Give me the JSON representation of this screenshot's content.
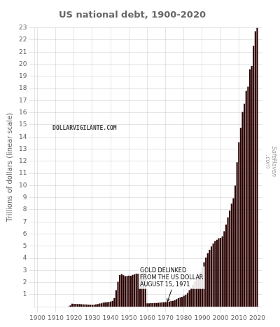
{
  "chart_data": {
    "type": "bar",
    "title": "US national debt, 1900-2020",
    "ylabel": "Trillions of dollars (linear scale)",
    "x": [
      1900,
      1901,
      1902,
      1903,
      1904,
      1905,
      1906,
      1907,
      1908,
      1909,
      1910,
      1911,
      1912,
      1913,
      1914,
      1915,
      1916,
      1917,
      1918,
      1919,
      1920,
      1921,
      1922,
      1923,
      1924,
      1925,
      1926,
      1927,
      1928,
      1929,
      1930,
      1931,
      1932,
      1933,
      1934,
      1935,
      1936,
      1937,
      1938,
      1939,
      1940,
      1941,
      1942,
      1943,
      1944,
      1945,
      1946,
      1947,
      1948,
      1949,
      1950,
      1951,
      1952,
      1953,
      1954,
      1955,
      1956,
      1957,
      1958,
      1959,
      1960,
      1961,
      1962,
      1963,
      1964,
      1965,
      1966,
      1967,
      1968,
      1969,
      1970,
      1971,
      1972,
      1973,
      1974,
      1975,
      1976,
      1977,
      1978,
      1979,
      1980,
      1981,
      1982,
      1983,
      1984,
      1985,
      1986,
      1987,
      1988,
      1989,
      1990,
      1991,
      1992,
      1993,
      1994,
      1995,
      1996,
      1997,
      1998,
      1999,
      2000,
      2001,
      2002,
      2003,
      2004,
      2005,
      2006,
      2007,
      2008,
      2009,
      2010,
      2011,
      2012,
      2013,
      2014,
      2015,
      2016,
      2017,
      2018,
      2019,
      2020
    ],
    "values": [
      0.0013,
      0.0011,
      0.0009,
      0.0009,
      0.0009,
      0.0009,
      0.0009,
      0.0009,
      0.001,
      0.0009,
      0.0011,
      0.0011,
      0.0012,
      0.0012,
      0.0012,
      0.0025,
      0.0034,
      0.0298,
      0.12,
      0.256,
      0.2426,
      0.239,
      0.2298,
      0.2218,
      0.2136,
      0.2062,
      0.1987,
      0.1834,
      0.1723,
      0.1693,
      0.1613,
      0.1688,
      0.1985,
      0.2274,
      0.2703,
      0.2887,
      0.3385,
      0.3615,
      0.3745,
      0.404,
      0.4307,
      0.4887,
      0.727,
      1.367,
      2.0583,
      2.6082,
      2.6952,
      2.594,
      2.5253,
      2.5373,
      2.5697,
      2.5553,
      2.6263,
      2.6669,
      2.7249,
      2.732,
      2.7292,
      2.7047,
      2.796,
      2.8602,
      0.2907,
      0.2885,
      0.2975,
      0.3063,
      0.3156,
      0.3222,
      0.3319,
      0.3402,
      0.3566,
      0.368,
      0.3823,
      0.4085,
      0.4354,
      0.4681,
      0.4839,
      0.5421,
      0.6295,
      0.7062,
      0.7766,
      0.8286,
      0.9093,
      0.9982,
      1.1423,
      1.3772,
      1.5728,
      1.8233,
      2.1259,
      2.3452,
      2.6013,
      2.8575,
      3.2334,
      3.665,
      4.0649,
      4.4112,
      4.6931,
      4.9737,
      5.2248,
      5.4132,
      5.5263,
      5.6568,
      5.6741,
      5.8075,
      6.2285,
      6.7839,
      7.3791,
      7.9328,
      8.5066,
      8.9508,
      9.9869,
      11.909,
      13.5617,
      14.7644,
      16.0662,
      16.7385,
      17.794,
      18.1506,
      19.5732,
      19.8465,
      21.5162,
      22.7192,
      23.0
    ],
    "color": "#2a0000",
    "xlim": [
      1898.5,
      2022.5
    ],
    "ylim": [
      0,
      23
    ],
    "xticks": [
      1900,
      1910,
      1920,
      1930,
      1940,
      1950,
      1960,
      1970,
      1980,
      1990,
      2000,
      2010,
      2020
    ],
    "yticks": [
      1,
      2,
      3,
      4,
      5,
      6,
      7,
      8,
      9,
      10,
      11,
      12,
      13,
      14,
      15,
      16,
      17,
      18,
      19,
      20,
      21,
      22,
      23
    ],
    "grid": true,
    "annotations": [
      {
        "text": "GOLD DELINKED\nFROM THE US DOLLAR\nAUGUST 15, 1971",
        "x": 1971,
        "y": 0.42,
        "text_x": 1956,
        "text_y": 2.4
      },
      {
        "text": "SafeHaven\n.com"
      },
      {
        "text": "DOLLARVIGILANTE.COM"
      }
    ]
  }
}
